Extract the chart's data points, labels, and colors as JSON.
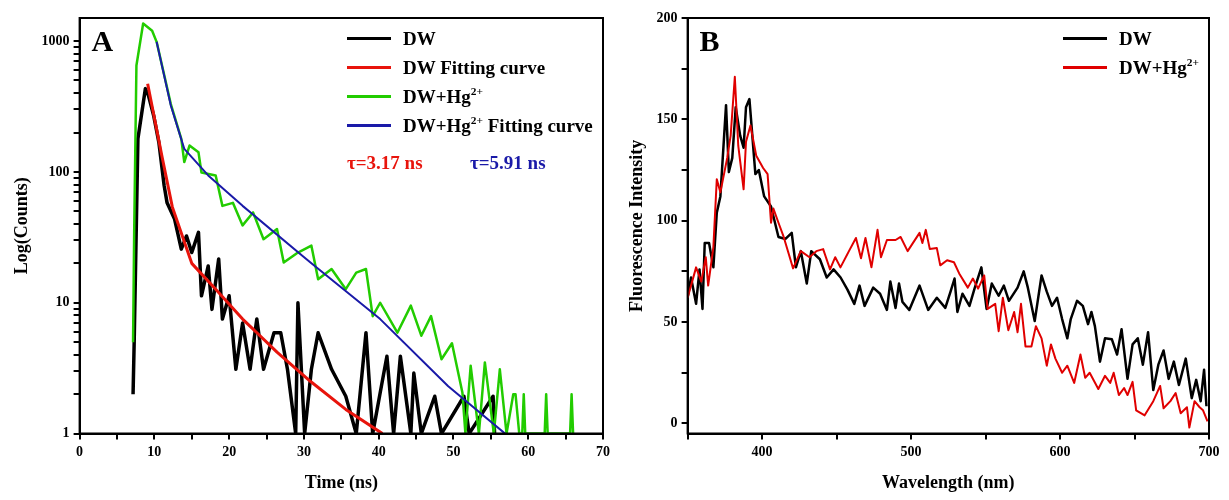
{
  "chart_data": [
    {
      "type": "line",
      "title": "A",
      "xlabel": "Time (ns)",
      "ylabel": "Log(Counts)",
      "log": "y",
      "legend": "top right",
      "xlim": [
        0,
        70
      ],
      "xticks": [
        0,
        {
          "value": 5,
          "label": null
        },
        10,
        {
          "value": 15,
          "label": null
        },
        20,
        {
          "value": 25,
          "label": null
        },
        30,
        {
          "value": 35,
          "label": null
        },
        40,
        {
          "value": 45,
          "label": null
        },
        50,
        {
          "value": 55,
          "label": null
        },
        60,
        {
          "value": 65,
          "label": null
        },
        70
      ],
      "ylim": [
        1,
        1500
      ],
      "yticks": [
        1,
        {
          "value": 2,
          "label": null
        },
        {
          "value": 3,
          "label": null
        },
        {
          "value": 4,
          "label": null
        },
        {
          "value": 5,
          "label": null
        },
        {
          "value": 6,
          "label": null
        },
        {
          "value": 7,
          "label": null
        },
        {
          "value": 8,
          "label": null
        },
        {
          "value": 9,
          "label": null
        },
        10,
        {
          "value": 20,
          "label": null
        },
        {
          "value": 30,
          "label": null
        },
        {
          "value": 40,
          "label": null
        },
        {
          "value": 50,
          "label": null
        },
        {
          "value": 60,
          "label": null
        },
        {
          "value": 70,
          "label": null
        },
        {
          "value": 80,
          "label": null
        },
        {
          "value": 90,
          "label": null
        },
        100,
        {
          "value": 200,
          "label": null
        },
        {
          "value": 300,
          "label": null
        },
        {
          "value": 400,
          "label": null
        },
        {
          "value": 500,
          "label": null
        },
        {
          "value": 600,
          "label": null
        },
        {
          "value": 700,
          "label": null
        },
        {
          "value": 800,
          "label": null
        },
        {
          "value": 900,
          "label": null
        },
        1000
      ],
      "annotations": [
        "τ=3.17 ns",
        "τ=5.91 ns"
      ],
      "series": [
        {
          "name": "DW",
          "color": "#000000",
          "x": [
            7.15,
            7.3,
            7.8,
            8.8,
            9.2,
            9.9,
            10.6,
            11.3,
            11.7,
            12.7,
            13.1,
            13.6,
            14.3,
            15.0,
            15.9,
            16.3,
            17.2,
            17.7,
            18.6,
            19.1,
            20.0,
            20.9,
            21.8,
            22.8,
            23.7,
            24.6,
            26.0,
            26.9,
            27.8,
            28.9,
            29.2,
            30.1,
            31.0,
            31.9,
            33.7,
            35.6,
            37.0,
            38.3,
            39.2,
            40.2,
            41.1,
            42.0,
            42.9,
            44.3,
            44.7,
            45.7,
            47.5,
            48.4,
            51.4,
            52.1,
            55.3,
            55.5
          ],
          "values": [
            2,
            5,
            179,
            433,
            385,
            270,
            168,
            79,
            58,
            43.6,
            34.5,
            25.7,
            32.4,
            24.2,
            34.5,
            11.3,
            19.1,
            8.9,
            21.6,
            7.5,
            11.3,
            3.1,
            7,
            3.1,
            7.5,
            3.1,
            5.9,
            5.9,
            3.1,
            1,
            10,
            1,
            3.1,
            5.9,
            3.1,
            1.93,
            1,
            5.9,
            1,
            2.05,
            3.9,
            1,
            3.9,
            1,
            2.9,
            1,
            1.93,
            1,
            1.93,
            1,
            1.93,
            1
          ]
        },
        {
          "name": "DW Fitting curve",
          "color": "#e8140c",
          "x": [
            9.1,
            11.0,
            12.4,
            15.0,
            18.2,
            21.8,
            26.4,
            30.9,
            35.6,
            40.5
          ],
          "values": [
            472,
            133,
            54,
            20,
            12.7,
            7.5,
            4.2,
            2.5,
            1.53,
            1
          ]
        },
        {
          "name": "DW+Hg$^{2+}$",
          "color": "#22cc00",
          "x": [
            7.15,
            7.3,
            7.6,
            8.5,
            9.7,
            10.3,
            12.2,
            13.6,
            14.0,
            14.7,
            15.9,
            16.3,
            18.2,
            19.1,
            20.5,
            21.8,
            23.2,
            24.6,
            26.4,
            27.3,
            29.2,
            31.0,
            31.9,
            33.7,
            35.6,
            37.0,
            38.3,
            39.2,
            40.2,
            42.5,
            44.3,
            45.7,
            47.0,
            48.4,
            49.8,
            51.2,
            51.6,
            52.3,
            53.4,
            54.2,
            55.4,
            56.2,
            57.1,
            58.0,
            58.3,
            58.8,
            59.2,
            59.4,
            59.6,
            62.2,
            62.4,
            62.6,
            65.6,
            65.8,
            66.0
          ],
          "values": [
            5,
            35,
            650,
            1360,
            1200,
            986,
            330,
            179,
            119,
            159,
            141,
            99,
            94,
            55,
            58,
            39,
            49,
            30.6,
            36.6,
            20.3,
            24.2,
            27.3,
            15.1,
            18.1,
            12.7,
            17,
            18.1,
            7.9,
            10,
            5.9,
            9.5,
            5.6,
            7.9,
            3.7,
            4.9,
            2.05,
            1,
            3.3,
            1,
            3.5,
            1,
            3.1,
            1,
            2,
            2,
            1,
            1,
            2,
            1,
            1,
            2,
            1,
            1,
            2,
            1
          ]
        },
        {
          "name": "DW+Hg$^{2+}$ Fitting curve",
          "color": "#1a1aa8",
          "x": [
            10.3,
            12.2,
            14.0,
            17.2,
            21.8,
            31.0,
            40.2,
            49.3,
            56.9
          ],
          "values": [
            986,
            322,
            150,
            94,
            55,
            20,
            7.5,
            2.3,
            1
          ]
        }
      ]
    },
    {
      "type": "line",
      "title": "B",
      "xlabel": "Wavelength (nm)",
      "ylabel": "Fluorescence Intensity",
      "legend": "top right",
      "xlim": [
        350,
        700
      ],
      "xticks": [
        {
          "value": 350,
          "label": null
        },
        400,
        {
          "value": 450,
          "label": null
        },
        500,
        {
          "value": 550,
          "label": null
        },
        600,
        {
          "value": 650,
          "label": null
        },
        700
      ],
      "ylim": [
        -5,
        200
      ],
      "yticks": [
        0,
        {
          "value": 25,
          "label": null
        },
        50,
        {
          "value": 75,
          "label": null
        },
        100,
        {
          "value": 125,
          "label": null
        },
        150,
        {
          "value": 175,
          "label": null
        },
        200
      ],
      "series": [
        {
          "name": "DW",
          "color": "#000000",
          "x": [
            350,
            352.3,
            355.7,
            358,
            360,
            361.5,
            364.4,
            367.3,
            369.6,
            372,
            375.8,
            377.7,
            380,
            382.3,
            385.3,
            387.6,
            389.2,
            391.5,
            395.5,
            397.8,
            401.4,
            406,
            411,
            415.7,
            419.9,
            422.7,
            426,
            430,
            433,
            438.8,
            443.4,
            448,
            452.7,
            457.3,
            461.9,
            465.4,
            468.8,
            474.6,
            479.2,
            483.8,
            486.1,
            489.6,
            491.9,
            494.2,
            498.8,
            505.7,
            511.5,
            517.3,
            523,
            526.5,
            529.2,
            531.1,
            534.5,
            539.2,
            542.6,
            547.2,
            550.7,
            554.2,
            558.8,
            562.3,
            565.7,
            571.5,
            575.6,
            578.4,
            583,
            587.6,
            591.1,
            594.6,
            598,
            601.4,
            604.9,
            607.2,
            611.4,
            615.3,
            618.8,
            621.1,
            623.4,
            626.8,
            630.2,
            634.8,
            638.3,
            641.3,
            645.3,
            648.7,
            652.2,
            655.6,
            659.1,
            662.6,
            666,
            669.5,
            672.9,
            676.4,
            679.8,
            684.4,
            688.4,
            691.4,
            694.4,
            696.7,
            698.3
          ],
          "values": [
            62,
            72,
            59,
            76,
            56.5,
            89,
            89,
            77,
            104,
            112,
            157,
            124,
            131,
            156,
            142,
            136,
            156,
            160,
            123,
            125,
            112,
            107,
            92,
            91,
            94,
            77,
            85,
            69,
            85,
            81,
            72,
            76,
            72,
            66,
            59,
            68,
            58,
            67,
            64,
            56,
            70,
            57,
            69,
            60,
            56,
            68,
            56,
            62,
            57,
            65,
            71.5,
            55,
            64,
            58,
            66.5,
            77,
            56.5,
            69,
            63,
            68,
            60.5,
            67,
            75,
            67,
            50.5,
            73,
            65,
            58,
            62,
            51.5,
            42,
            51.5,
            60.5,
            58,
            49,
            55,
            48,
            30.5,
            42,
            41.5,
            34,
            46.5,
            22,
            39,
            42,
            29,
            45,
            16.5,
            29,
            36,
            22,
            30.5,
            19,
            32,
            12.5,
            21.5,
            11,
            26.5,
            8.5
          ]
        },
        {
          "name": "DW+Hg$^{2+}$",
          "color": "#e00000",
          "x": [
            350,
            352.3,
            355.7,
            359.2,
            362.2,
            363.8,
            367.3,
            369.6,
            372,
            376.6,
            378.9,
            381.7,
            384,
            387.6,
            389.2,
            392.2,
            396.1,
            400.7,
            403.7,
            406,
            407.6,
            411,
            414.5,
            420.8,
            426,
            431.8,
            436.4,
            441,
            445.6,
            449.1,
            452.6,
            458.3,
            463,
            466.4,
            469.4,
            473.4,
            477.5,
            479.8,
            483.8,
            489.6,
            493,
            497.7,
            505.7,
            507.6,
            509.9,
            512.6,
            517.3,
            519.6,
            524.2,
            528.8,
            532.3,
            538.1,
            541.5,
            545,
            549.1,
            551.4,
            556.5,
            558.8,
            561.6,
            565.3,
            569.2,
            571.5,
            573.8,
            576.8,
            580.8,
            583.8,
            587.6,
            591.1,
            593.9,
            596.9,
            601.4,
            604.9,
            609.5,
            613.7,
            616.9,
            619.9,
            625.7,
            630.2,
            633.7,
            636,
            639.5,
            643,
            645.3,
            648.7,
            651.1,
            656.8,
            662.6,
            667.2,
            669.5,
            674.1,
            677.6,
            681,
            685.2,
            686.8,
            690.3,
            693.7,
            696,
            699
          ],
          "values": [
            62,
            68,
            77,
            70,
            82,
            68,
            87,
            120.5,
            114,
            131,
            142,
            171,
            137,
            115.5,
            139,
            147,
            132,
            126,
            123,
            99,
            106,
            99,
            92,
            76.5,
            85,
            82,
            85,
            86,
            76,
            82,
            77,
            85,
            91.5,
            81.5,
            91.5,
            77,
            95.5,
            82,
            90.5,
            90.5,
            92,
            85,
            94,
            89,
            95.5,
            86,
            86.5,
            78,
            80.5,
            79.5,
            74,
            67,
            71.5,
            66.5,
            73,
            56.5,
            59,
            45.5,
            62,
            46,
            55,
            45,
            59,
            38,
            38,
            48,
            42,
            28.5,
            39,
            32,
            25,
            28.5,
            20,
            34,
            22.5,
            25,
            17,
            23.5,
            20,
            25,
            14,
            17.5,
            14,
            20.5,
            6.5,
            4,
            11,
            18.5,
            7.5,
            11,
            15,
            5,
            8,
            -2,
            11,
            8,
            6.5,
            1
          ]
        }
      ]
    }
  ]
}
